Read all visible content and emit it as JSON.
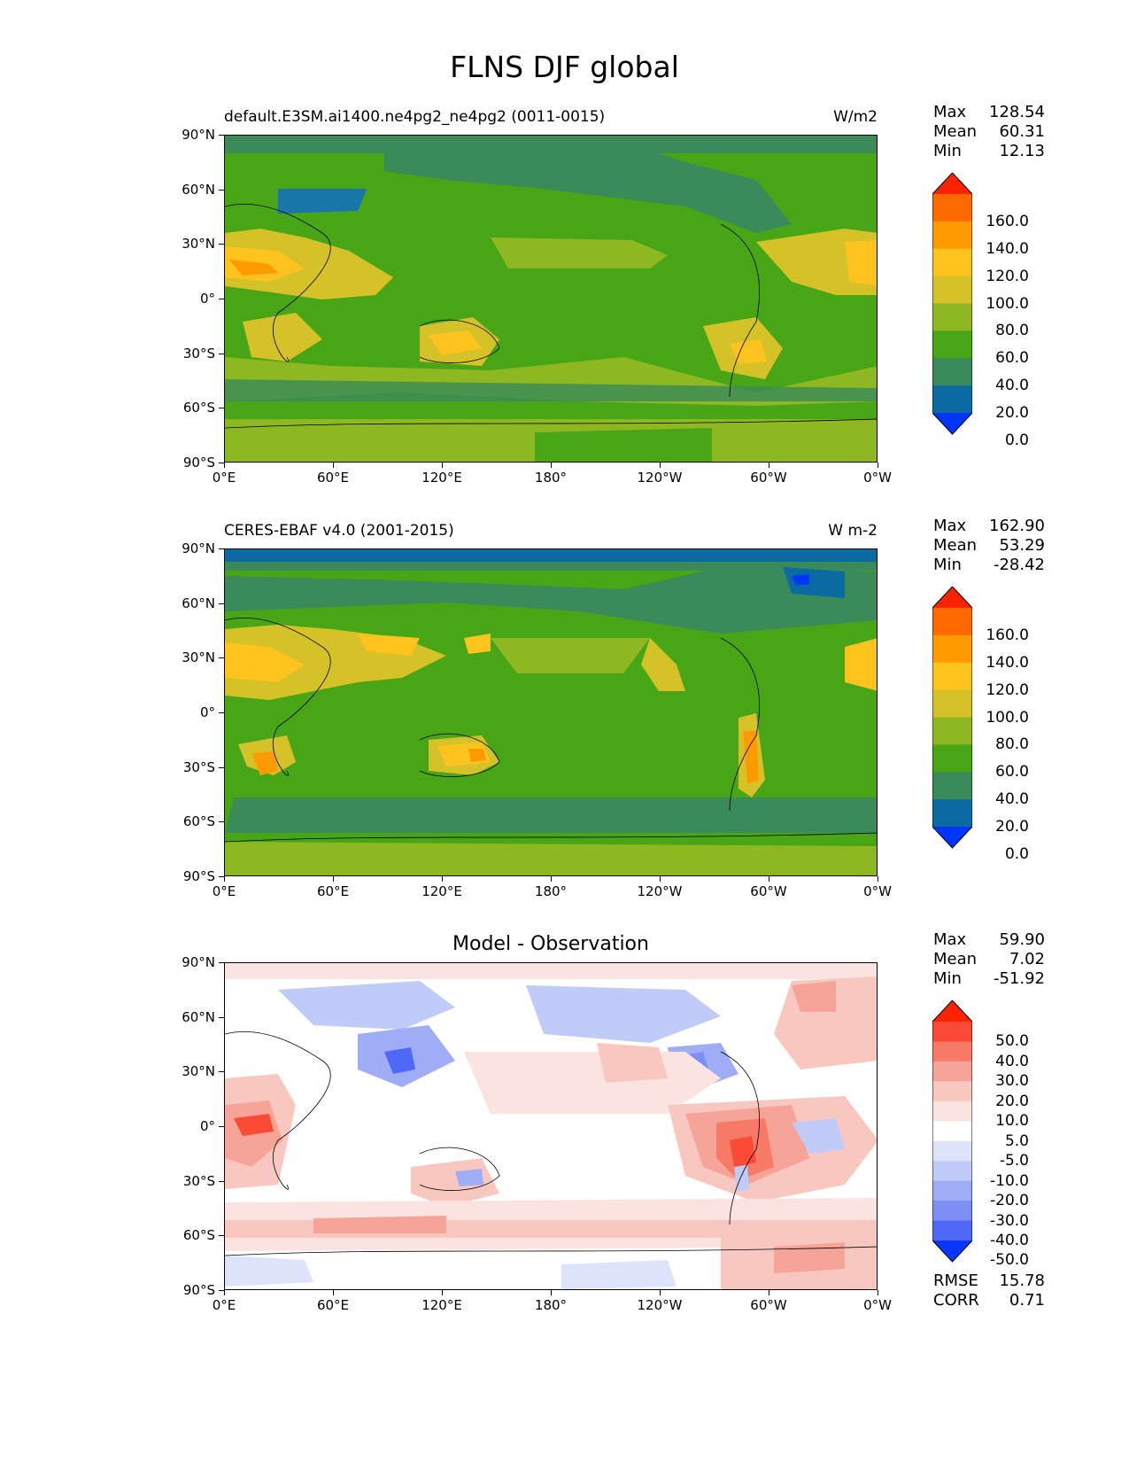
{
  "title": "FLNS DJF global",
  "x_ticks": [
    "0°E",
    "60°E",
    "120°E",
    "180°",
    "120°W",
    "60°W",
    "0°W"
  ],
  "y_ticks": [
    "90°N",
    "60°N",
    "30°N",
    "0°",
    "30°S",
    "60°S",
    "90°S"
  ],
  "panels": [
    {
      "subtitle_left": "default.E3SM.ai1400.ne4pg2_ne4pg2 (0011-0015)",
      "subtitle_right": "W/m2",
      "subtitle_center": "",
      "stats": {
        "max_label": "Max",
        "max": "128.54",
        "mean_label": "Mean",
        "mean": "60.31",
        "min_label": "Min",
        "min": "12.13"
      },
      "colorbar_labels": [
        "160.0",
        "140.0",
        "120.0",
        "100.0",
        "80.0",
        "60.0",
        "40.0",
        "20.0",
        "0.0"
      ],
      "colorbar_colors": [
        "#ff2200",
        "#ff6a00",
        "#ff9a00",
        "#ffc31f",
        "#d4c228",
        "#8db821",
        "#48a515",
        "#3a8a5a",
        "#0a6aa2",
        "#0035ff"
      ]
    },
    {
      "subtitle_left": "CERES-EBAF v4.0 (2001-2015)",
      "subtitle_right": "W m-2",
      "subtitle_center": "",
      "stats": {
        "max_label": "Max",
        "max": "162.90",
        "mean_label": "Mean",
        "mean": "53.29",
        "min_label": "Min",
        "min": "-28.42"
      },
      "colorbar_labels": [
        "160.0",
        "140.0",
        "120.0",
        "100.0",
        "80.0",
        "60.0",
        "40.0",
        "20.0",
        "0.0"
      ],
      "colorbar_colors": [
        "#ff2200",
        "#ff6a00",
        "#ff9a00",
        "#ffc31f",
        "#d4c228",
        "#8db821",
        "#48a515",
        "#3a8a5a",
        "#0a6aa2",
        "#0035ff"
      ]
    },
    {
      "subtitle_left": "",
      "subtitle_right": "",
      "subtitle_center": "Model - Observation",
      "stats": {
        "max_label": "Max",
        "max": "59.90",
        "mean_label": "Mean",
        "mean": "7.02",
        "min_label": "Min",
        "min": "-51.92"
      },
      "colorbar_labels": [
        "50.0",
        "40.0",
        "30.0",
        "20.0",
        "10.0",
        "5.0",
        "-5.0",
        "-10.0",
        "-20.0",
        "-30.0",
        "-40.0",
        "-50.0"
      ],
      "colorbar_colors": [
        "#ff2200",
        "#fb4a35",
        "#f77a66",
        "#f6a497",
        "#f8c8c0",
        "#fbe4e0",
        "#ffffff",
        "#dde3fb",
        "#c0cbf8",
        "#9fadf6",
        "#7d8ff5",
        "#5068f7",
        "#0a35ff"
      ]
    }
  ],
  "metrics": {
    "rmse_label": "RMSE",
    "rmse": "15.78",
    "corr_label": "CORR",
    "corr": "0.71"
  },
  "chart_data": [
    {
      "type": "heatmap",
      "title": "default.E3SM.ai1400.ne4pg2_ne4pg2 (0011-0015)",
      "units": "W/m2",
      "xlim": [
        0,
        360
      ],
      "ylim": [
        -90,
        90
      ],
      "max": 128.54,
      "mean": 60.31,
      "min": 12.13,
      "levels": [
        0,
        20,
        40,
        60,
        80,
        100,
        120,
        140,
        160
      ]
    },
    {
      "type": "heatmap",
      "title": "CERES-EBAF v4.0 (2001-2015)",
      "units": "W m-2",
      "xlim": [
        0,
        360
      ],
      "ylim": [
        -90,
        90
      ],
      "max": 162.9,
      "mean": 53.29,
      "min": -28.42,
      "levels": [
        0,
        20,
        40,
        60,
        80,
        100,
        120,
        140,
        160
      ]
    },
    {
      "type": "heatmap",
      "title": "Model - Observation",
      "xlim": [
        0,
        360
      ],
      "ylim": [
        -90,
        90
      ],
      "max": 59.9,
      "mean": 7.02,
      "min": -51.92,
      "rmse": 15.78,
      "corr": 0.71,
      "levels": [
        -50,
        -40,
        -30,
        -20,
        -10,
        -5,
        5,
        10,
        20,
        30,
        40,
        50
      ]
    }
  ]
}
